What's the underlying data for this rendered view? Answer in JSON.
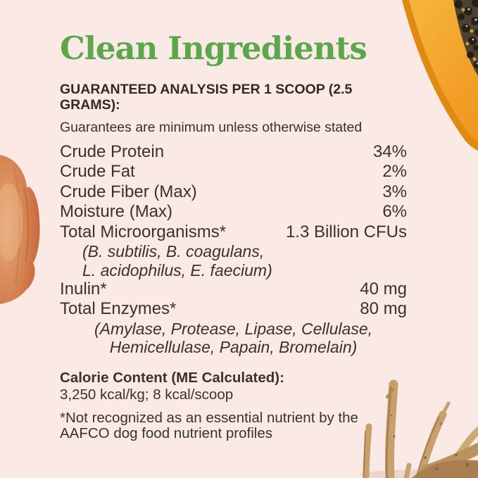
{
  "page_title": "Clean Ingredients",
  "colors": {
    "background": "#FAE9E4",
    "title_green": "#5BA84C",
    "text_dark": "#38332F",
    "papaya_flesh": "#F2A028",
    "pumpkin_orange": "#D68352",
    "root_tan": "#C7A06B"
  },
  "analysis": {
    "heading": "GUARANTEED ANALYSIS PER 1 SCOOP (2.5 GRAMS):",
    "note": "Guarantees are minimum unless otherwise stated",
    "rows": [
      {
        "type": "pair",
        "label": "Crude Protein",
        "value": "34%"
      },
      {
        "type": "pair",
        "label": "Crude Fat",
        "value": "2%"
      },
      {
        "type": "pair",
        "label": "Crude Fiber (Max)",
        "value": "3%"
      },
      {
        "type": "pair",
        "label": "Moisture (Max)",
        "value": "6%"
      },
      {
        "type": "pair",
        "label": "Total Microorganisms*",
        "value": "1.3 Billion CFUs"
      },
      {
        "type": "sub-indent",
        "text": "(B. subtilis, B. coagulans,"
      },
      {
        "type": "sub-indent",
        "text": "L. acidophilus, E. faecium)"
      },
      {
        "type": "pair",
        "label": "Inulin*",
        "value": "40 mg"
      },
      {
        "type": "pair",
        "label": "Total Enzymes*",
        "value": "80 mg"
      },
      {
        "type": "sub-center",
        "text": "(Amylase, Protease, Lipase, Cellulase,"
      },
      {
        "type": "sub-center",
        "text": "Hemicellulase, Papain, Bromelain)"
      }
    ]
  },
  "calorie": {
    "heading": "Calorie Content (ME Calculated):",
    "value": "3,250 kcal/kg; 8 kcal/scoop"
  },
  "footnote": {
    "lines": [
      "*Not recognized as an essential nutrient by the",
      "AAFCO dog food nutrient profiles"
    ]
  },
  "decorations": {
    "papaya": "papaya-half-with-seeds",
    "pumpkin": "orange-pumpkin-half",
    "roots": "dried-herb-roots"
  }
}
